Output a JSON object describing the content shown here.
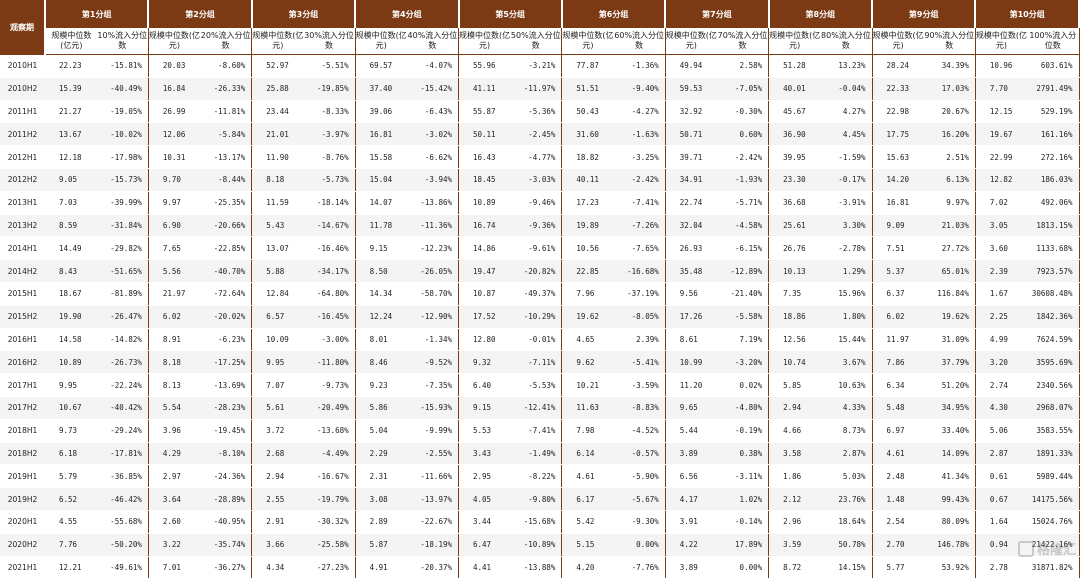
{
  "header": {
    "period_label": "观察期",
    "groups": [
      "第1分组",
      "第2分组",
      "第3分组",
      "第4分组",
      "第5分组",
      "第6分组",
      "第7分组",
      "第8分组",
      "第9分组",
      "第10分组"
    ],
    "size_label": "规模中位数(亿元)",
    "flow_labels": [
      "10%流入分位数",
      "20%流入分位数",
      "30%流入分位数",
      "40%流入分位数",
      "50%流入分位数",
      "60%流入分位数",
      "70%流入分位数",
      "80%流入分位数",
      "90%流入分位数",
      "100%流入分位数"
    ]
  },
  "rows": [
    {
      "period": "2010H1",
      "cells": [
        "22.23",
        "-15.81%",
        "20.03",
        "-8.60%",
        "52.97",
        "-5.51%",
        "69.57",
        "-4.07%",
        "55.96",
        "-3.21%",
        "77.87",
        "-1.36%",
        "49.94",
        "2.58%",
        "51.28",
        "13.23%",
        "28.24",
        "34.39%",
        "10.96",
        "603.61%"
      ]
    },
    {
      "period": "2010H2",
      "cells": [
        "15.39",
        "-40.49%",
        "16.84",
        "-26.33%",
        "25.88",
        "-19.85%",
        "37.40",
        "-15.42%",
        "41.11",
        "-11.97%",
        "51.51",
        "-9.40%",
        "59.53",
        "-7.05%",
        "40.01",
        "-0.04%",
        "22.33",
        "17.03%",
        "7.70",
        "2791.49%"
      ]
    },
    {
      "period": "2011H1",
      "cells": [
        "21.27",
        "-19.05%",
        "26.99",
        "-11.81%",
        "23.44",
        "-8.33%",
        "39.06",
        "-6.43%",
        "55.87",
        "-5.36%",
        "50.43",
        "-4.27%",
        "32.92",
        "-0.30%",
        "45.67",
        "4.27%",
        "22.98",
        "20.67%",
        "12.15",
        "529.19%"
      ]
    },
    {
      "period": "2011H2",
      "cells": [
        "13.67",
        "-10.02%",
        "12.06",
        "-5.84%",
        "21.01",
        "-3.97%",
        "16.81",
        "-3.02%",
        "50.11",
        "-2.45%",
        "31.60",
        "-1.63%",
        "50.71",
        "0.60%",
        "36.90",
        "4.45%",
        "17.75",
        "16.20%",
        "19.67",
        "161.16%"
      ]
    },
    {
      "period": "2012H1",
      "cells": [
        "12.18",
        "-17.98%",
        "10.31",
        "-13.17%",
        "11.90",
        "-8.76%",
        "15.58",
        "-6.62%",
        "16.43",
        "-4.77%",
        "18.82",
        "-3.25%",
        "39.71",
        "-2.42%",
        "39.95",
        "-1.59%",
        "15.63",
        "2.51%",
        "22.99",
        "272.16%"
      ]
    },
    {
      "period": "2012H2",
      "cells": [
        "9.05",
        "-15.73%",
        "9.70",
        "-8.44%",
        "8.18",
        "-5.73%",
        "15.04",
        "-3.94%",
        "18.45",
        "-3.03%",
        "40.11",
        "-2.42%",
        "34.91",
        "-1.93%",
        "23.30",
        "-0.17%",
        "14.20",
        "6.13%",
        "12.82",
        "186.03%"
      ]
    },
    {
      "period": "2013H1",
      "cells": [
        "7.03",
        "-39.99%",
        "9.97",
        "-25.35%",
        "11.59",
        "-18.14%",
        "14.07",
        "-13.86%",
        "10.89",
        "-9.46%",
        "17.23",
        "-7.41%",
        "22.74",
        "-5.71%",
        "36.68",
        "-3.91%",
        "16.81",
        "9.97%",
        "7.02",
        "492.06%"
      ]
    },
    {
      "period": "2013H2",
      "cells": [
        "8.59",
        "-31.84%",
        "6.90",
        "-20.66%",
        "5.43",
        "-14.67%",
        "11.78",
        "-11.36%",
        "16.74",
        "-9.36%",
        "19.89",
        "-7.26%",
        "32.04",
        "-4.58%",
        "25.61",
        "3.30%",
        "9.09",
        "21.03%",
        "3.05",
        "1813.15%"
      ]
    },
    {
      "period": "2014H1",
      "cells": [
        "14.49",
        "-29.82%",
        "7.65",
        "-22.85%",
        "13.07",
        "-16.46%",
        "9.15",
        "-12.23%",
        "14.86",
        "-9.61%",
        "10.56",
        "-7.65%",
        "26.93",
        "-6.15%",
        "26.76",
        "-2.78%",
        "7.51",
        "27.72%",
        "3.60",
        "1133.68%"
      ]
    },
    {
      "period": "2014H2",
      "cells": [
        "8.43",
        "-51.65%",
        "5.56",
        "-40.70%",
        "5.88",
        "-34.17%",
        "8.50",
        "-26.05%",
        "19.47",
        "-20.82%",
        "22.85",
        "-16.68%",
        "35.48",
        "-12.89%",
        "10.13",
        "1.29%",
        "5.37",
        "65.01%",
        "2.39",
        "7923.57%"
      ]
    },
    {
      "period": "2015H1",
      "cells": [
        "18.67",
        "-81.89%",
        "21.97",
        "-72.64%",
        "12.84",
        "-64.80%",
        "14.34",
        "-58.70%",
        "10.87",
        "-49.37%",
        "7.96",
        "-37.19%",
        "9.56",
        "-21.40%",
        "7.35",
        "15.96%",
        "6.37",
        "116.84%",
        "1.67",
        "30608.48%"
      ]
    },
    {
      "period": "2015H2",
      "cells": [
        "19.90",
        "-26.47%",
        "6.02",
        "-20.02%",
        "6.57",
        "-16.45%",
        "12.24",
        "-12.90%",
        "17.52",
        "-10.29%",
        "19.62",
        "-8.05%",
        "17.26",
        "-5.58%",
        "18.86",
        "1.80%",
        "6.02",
        "19.62%",
        "2.25",
        "1842.36%"
      ]
    },
    {
      "period": "2016H1",
      "cells": [
        "14.58",
        "-14.82%",
        "8.91",
        "-6.23%",
        "10.09",
        "-3.00%",
        "8.01",
        "-1.34%",
        "12.80",
        "-0.01%",
        "4.65",
        "2.39%",
        "8.61",
        "7.19%",
        "12.56",
        "15.44%",
        "11.97",
        "31.09%",
        "4.99",
        "7624.59%"
      ]
    },
    {
      "period": "2016H2",
      "cells": [
        "10.89",
        "-26.73%",
        "8.18",
        "-17.25%",
        "9.95",
        "-11.80%",
        "8.46",
        "-9.52%",
        "9.32",
        "-7.11%",
        "9.62",
        "-5.41%",
        "10.99",
        "-3.20%",
        "10.74",
        "3.67%",
        "7.86",
        "37.79%",
        "3.20",
        "3595.69%"
      ]
    },
    {
      "period": "2017H1",
      "cells": [
        "9.95",
        "-22.24%",
        "8.13",
        "-13.69%",
        "7.07",
        "-9.73%",
        "9.23",
        "-7.35%",
        "6.40",
        "-5.53%",
        "10.21",
        "-3.59%",
        "11.20",
        "0.02%",
        "5.85",
        "10.63%",
        "6.34",
        "51.20%",
        "2.74",
        "2340.56%"
      ]
    },
    {
      "period": "2017H2",
      "cells": [
        "10.67",
        "-40.42%",
        "5.54",
        "-28.23%",
        "5.61",
        "-20.49%",
        "5.86",
        "-15.93%",
        "9.15",
        "-12.41%",
        "11.63",
        "-8.83%",
        "9.65",
        "-4.80%",
        "2.94",
        "4.33%",
        "5.48",
        "34.95%",
        "4.30",
        "2968.07%"
      ]
    },
    {
      "period": "2018H1",
      "cells": [
        "9.73",
        "-29.24%",
        "3.96",
        "-19.45%",
        "3.72",
        "-13.68%",
        "5.04",
        "-9.99%",
        "5.53",
        "-7.41%",
        "7.98",
        "-4.52%",
        "5.44",
        "-0.19%",
        "4.66",
        "8.73%",
        "6.97",
        "33.40%",
        "5.06",
        "3583.55%"
      ]
    },
    {
      "period": "2018H2",
      "cells": [
        "6.18",
        "-17.81%",
        "4.29",
        "-8.10%",
        "2.68",
        "-4.49%",
        "2.29",
        "-2.55%",
        "3.43",
        "-1.49%",
        "6.14",
        "-0.57%",
        "3.89",
        "0.38%",
        "3.58",
        "2.87%",
        "4.61",
        "14.09%",
        "2.87",
        "1891.33%"
      ]
    },
    {
      "period": "2019H1",
      "cells": [
        "5.79",
        "-36.85%",
        "2.97",
        "-24.36%",
        "2.94",
        "-16.67%",
        "2.31",
        "-11.66%",
        "2.95",
        "-8.22%",
        "4.61",
        "-5.90%",
        "6.56",
        "-3.11%",
        "1.86",
        "5.03%",
        "2.48",
        "41.34%",
        "0.61",
        "5989.44%"
      ]
    },
    {
      "period": "2019H2",
      "cells": [
        "6.52",
        "-46.42%",
        "3.64",
        "-28.89%",
        "2.55",
        "-19.79%",
        "3.08",
        "-13.97%",
        "4.05",
        "-9.80%",
        "6.17",
        "-5.67%",
        "4.17",
        "1.02%",
        "2.12",
        "23.76%",
        "1.48",
        "99.43%",
        "0.67",
        "14175.56%"
      ]
    },
    {
      "period": "2020H1",
      "cells": [
        "4.55",
        "-55.68%",
        "2.60",
        "-40.95%",
        "2.91",
        "-30.32%",
        "2.89",
        "-22.67%",
        "3.44",
        "-15.68%",
        "5.42",
        "-9.30%",
        "3.91",
        "-0.14%",
        "2.96",
        "18.64%",
        "2.54",
        "80.09%",
        "1.64",
        "15024.76%"
      ]
    },
    {
      "period": "2020H2",
      "cells": [
        "7.76",
        "-50.20%",
        "3.22",
        "-35.74%",
        "3.66",
        "-25.58%",
        "5.87",
        "-18.19%",
        "6.47",
        "-10.89%",
        "5.15",
        "0.00%",
        "4.22",
        "17.89%",
        "3.59",
        "50.78%",
        "2.70",
        "146.78%",
        "0.94",
        "21422.16%"
      ]
    },
    {
      "period": "2021H1",
      "cells": [
        "12.21",
        "-49.61%",
        "7.01",
        "-36.27%",
        "4.34",
        "-27.23%",
        "4.91",
        "-20.37%",
        "4.41",
        "-13.88%",
        "4.20",
        "-7.76%",
        "3.89",
        "0.00%",
        "8.72",
        "14.15%",
        "5.77",
        "53.92%",
        "2.78",
        "31871.82%"
      ]
    }
  ],
  "watermark": "格隆汇"
}
